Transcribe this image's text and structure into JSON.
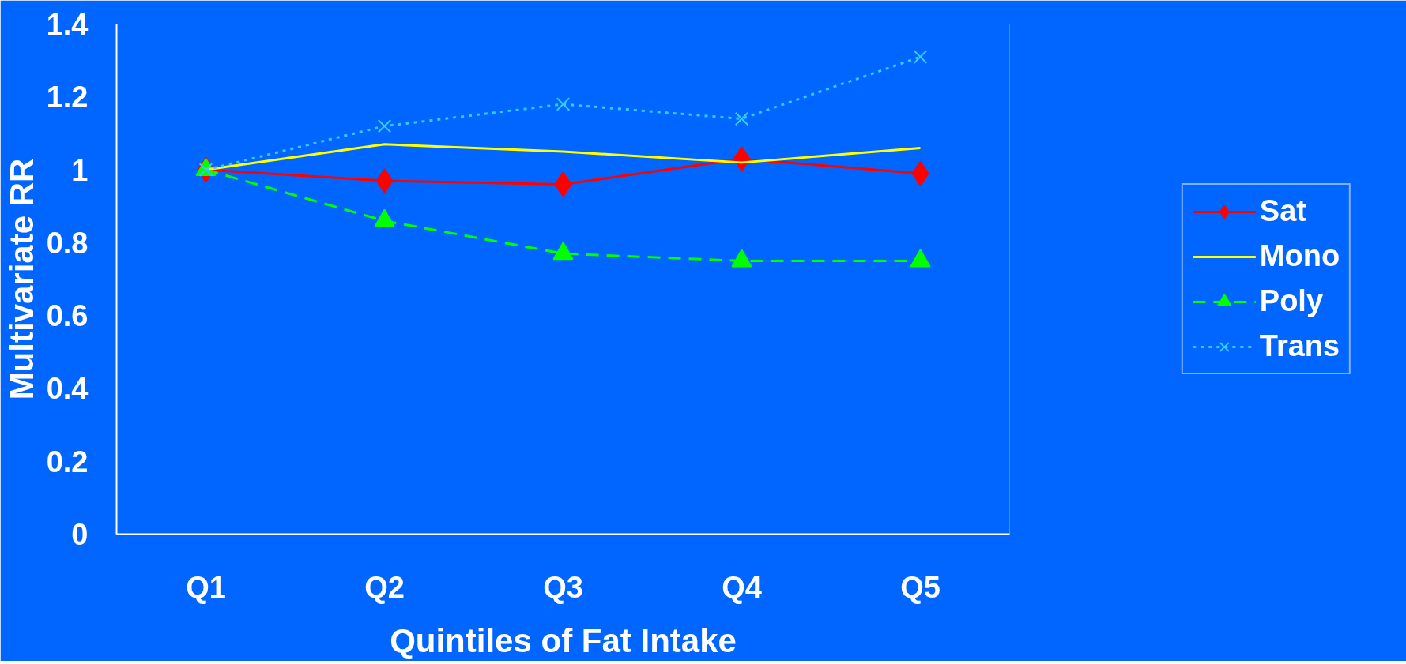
{
  "chart_data": {
    "type": "line",
    "xlabel": "Quintiles of Fat Intake",
    "ylabel": "Multivariate RR",
    "categories": [
      "Q1",
      "Q2",
      "Q3",
      "Q4",
      "Q5"
    ],
    "ylim": [
      0,
      1.4
    ],
    "yticks": [
      0,
      0.2,
      0.4,
      0.6,
      0.8,
      1,
      1.2,
      1.4
    ],
    "grid": false,
    "legend": "right",
    "series": [
      {
        "name": "Sat",
        "color": "#ff0000",
        "marker": "diamond",
        "line_style": "solid",
        "values": [
          1.0,
          0.97,
          0.96,
          1.03,
          0.99
        ]
      },
      {
        "name": "Mono",
        "color": "#ffff00",
        "marker": "none",
        "line_style": "solid",
        "values": [
          1.0,
          1.07,
          1.05,
          1.02,
          1.06
        ]
      },
      {
        "name": "Poly",
        "color": "#00ff00",
        "marker": "triangle",
        "line_style": "dashed",
        "values": [
          1.0,
          0.86,
          0.77,
          0.75,
          0.75
        ]
      },
      {
        "name": "Trans",
        "color": "#33ccff",
        "marker": "cross",
        "line_style": "dotted",
        "values": [
          1.0,
          1.12,
          1.18,
          1.14,
          1.31
        ]
      }
    ]
  }
}
